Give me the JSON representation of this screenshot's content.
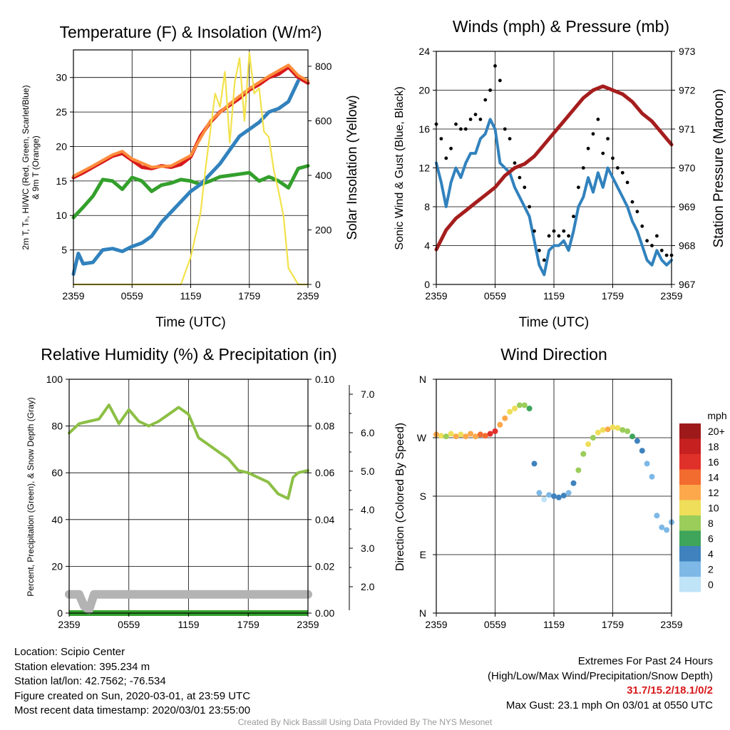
{
  "panels": [
    {
      "id": "temp",
      "title": "Temperature (F) & Insolation (W/m²)",
      "xlabel": "Time (UTC)",
      "ylabel_left_lines": [
        "2m T, Tₕ, HI/WC (Red, Green, Scarlet/Blue)",
        "& 9m T (Orange)"
      ],
      "ylabel_right": "Solar Insolation (Yellow)",
      "x_ticks": [
        "2359",
        "0559",
        "1159",
        "1759",
        "2359"
      ]
    },
    {
      "id": "wind",
      "title": "Winds (mph) & Pressure (mb)",
      "xlabel": "Time (UTC)",
      "ylabel_left": "Sonic Wind & Gust (Blue, Black)",
      "ylabel_right": "Station Pressure (Maroon)",
      "x_ticks": [
        "2359",
        "0559",
        "1159",
        "1759",
        "2359"
      ]
    },
    {
      "id": "rh",
      "title": "Relative Humidity (%) & Precipitation (in)",
      "ylabel_left": "Percent, Precipitation (Green), & Snow Depth (Gray)",
      "x_ticks": [
        "2359",
        "0559",
        "1159",
        "1759",
        "2359"
      ]
    },
    {
      "id": "dir",
      "title": "Wind Direction",
      "ylabel_left": "Direction (Colored By Speed)",
      "x_ticks": [
        "2359",
        "0559",
        "1159",
        "1759",
        "2359"
      ],
      "legend_title": "mph"
    }
  ],
  "chart_data": [
    {
      "type": "line",
      "title": "Temperature (F) & Insolation (W/m²)",
      "xlabel": "Time (UTC)",
      "x_hours_ticks": [
        "2359",
        "0559",
        "1159",
        "1759",
        "2359"
      ],
      "xlim": [
        0,
        24
      ],
      "y_left_lim": [
        0,
        34
      ],
      "y_left_ticks": [
        5,
        10,
        15,
        20,
        25,
        30
      ],
      "y_right_lim": [
        0,
        860
      ],
      "y_right_ticks": [
        0,
        200,
        400,
        600,
        800
      ],
      "grid": true,
      "series": [
        {
          "name": "2m T",
          "color": "#d7191c",
          "axis": "left",
          "x": [
            0,
            1,
            2,
            3,
            4,
            5,
            6,
            7,
            8,
            9,
            10,
            11,
            12,
            13,
            14,
            15,
            16,
            17,
            18,
            19,
            20,
            21,
            22,
            23,
            24
          ],
          "y": [
            15.5,
            16.2,
            17.0,
            17.8,
            18.6,
            19.0,
            18.0,
            17.0,
            16.8,
            17.2,
            17.0,
            17.4,
            18.5,
            21.5,
            23.5,
            25.0,
            26.0,
            27.0,
            28.2,
            29.0,
            30.0,
            30.5,
            31.5,
            30.0,
            29.2
          ]
        },
        {
          "name": "9m T",
          "color": "#fd8d3c",
          "axis": "left",
          "x": [
            0,
            2,
            4,
            5,
            6,
            8,
            10,
            12,
            14,
            16,
            18,
            20,
            22,
            23,
            24
          ],
          "y": [
            15.7,
            17.2,
            18.8,
            19.3,
            18.2,
            17.0,
            17.2,
            18.7,
            23.7,
            26.2,
            28.4,
            30.2,
            31.8,
            30.3,
            29.5
          ]
        },
        {
          "name": "Td",
          "color": "#33a02c",
          "axis": "left",
          "x": [
            0,
            1,
            2,
            3,
            4,
            5,
            6,
            7,
            8,
            9,
            10,
            11,
            12,
            13,
            14,
            15,
            16,
            17,
            18,
            19,
            20,
            21,
            22,
            23,
            24
          ],
          "y": [
            9.7,
            11.2,
            12.8,
            15.2,
            15.0,
            13.8,
            15.5,
            15.0,
            13.5,
            14.4,
            14.7,
            15.2,
            15.0,
            14.5,
            15.0,
            15.6,
            15.8,
            16.0,
            16.2,
            15.0,
            15.6,
            15.0,
            14.0,
            16.8,
            17.2
          ]
        },
        {
          "name": "HI/WC",
          "color": "#3182bd",
          "axis": "left",
          "x": [
            0,
            0.5,
            1,
            2,
            3,
            4,
            5,
            6,
            7,
            8,
            9,
            10,
            11,
            12,
            13,
            14,
            15,
            16,
            17,
            18,
            19,
            20,
            21,
            22,
            23
          ],
          "y": [
            1.5,
            4.5,
            3.0,
            3.2,
            5.0,
            5.2,
            4.8,
            5.5,
            6.0,
            7.0,
            9.0,
            10.5,
            12.0,
            13.5,
            14.5,
            16.0,
            17.5,
            19.5,
            21.5,
            22.5,
            23.5,
            25.0,
            25.5,
            26.5,
            29.5
          ]
        },
        {
          "name": "Solar",
          "color": "#f2e24b",
          "axis": "right",
          "x": [
            0,
            1,
            2,
            3,
            4,
            5,
            6,
            7,
            8,
            9,
            10,
            11,
            12,
            13,
            13.5,
            14,
            14.5,
            15,
            15.5,
            16,
            16.5,
            17,
            17.5,
            18,
            18.5,
            19,
            19.5,
            20,
            20.5,
            21,
            21.5,
            22,
            23,
            24
          ],
          "y": [
            0,
            0,
            0,
            0,
            0,
            0,
            0,
            0,
            0,
            0,
            0,
            0,
            100,
            260,
            420,
            560,
            700,
            650,
            780,
            520,
            740,
            830,
            600,
            850,
            700,
            720,
            560,
            540,
            420,
            340,
            250,
            60,
            0,
            0
          ]
        }
      ]
    },
    {
      "type": "line",
      "title": "Winds (mph) & Pressure (mb)",
      "xlabel": "Time (UTC)",
      "xlim": [
        0,
        24
      ],
      "y_left_lim": [
        0,
        24
      ],
      "y_left_ticks": [
        0,
        4,
        8,
        12,
        16,
        20,
        24
      ],
      "y_right_lim": [
        967,
        973
      ],
      "y_right_ticks": [
        967,
        968,
        969,
        970,
        971,
        972,
        973
      ],
      "grid": true,
      "series": [
        {
          "name": "Sonic Wind",
          "color": "#3182bd",
          "axis": "left",
          "x": [
            0,
            0.5,
            1,
            1.5,
            2,
            2.5,
            3,
            3.5,
            4,
            4.5,
            5,
            5.5,
            6,
            6.5,
            7,
            7.5,
            8,
            8.5,
            9,
            9.5,
            10,
            10.5,
            11,
            11.5,
            12,
            12.5,
            13,
            13.5,
            14,
            14.5,
            15,
            15.5,
            16,
            16.5,
            17,
            17.5,
            18,
            18.5,
            19,
            19.5,
            20,
            20.5,
            21,
            21.5,
            22,
            22.5,
            23,
            23.5,
            24
          ],
          "y": [
            12.5,
            10.5,
            8.0,
            10.5,
            12.0,
            11.0,
            12.5,
            13.5,
            13.5,
            15.0,
            15.5,
            17.0,
            16.0,
            12.5,
            12.0,
            11.5,
            10.0,
            9.0,
            8.0,
            7.0,
            4.5,
            2.0,
            1.0,
            3.5,
            4.0,
            4.0,
            4.5,
            3.5,
            5.5,
            8.0,
            9.0,
            11.0,
            9.5,
            11.5,
            10.0,
            12.0,
            11.0,
            10.0,
            9.0,
            8.0,
            6.5,
            5.5,
            4.0,
            2.5,
            2.0,
            3.5,
            2.5,
            2.0,
            2.5
          ]
        },
        {
          "name": "Gust",
          "color": "#000000",
          "axis": "left",
          "x": [
            0,
            0.5,
            1,
            1.5,
            2,
            2.5,
            3,
            3.5,
            4,
            4.5,
            5,
            5.5,
            6,
            6.5,
            7,
            7.5,
            8,
            8.5,
            9,
            9.5,
            10,
            10.5,
            11,
            11.5,
            12,
            12.5,
            13,
            13.5,
            14,
            14.5,
            15,
            15.5,
            16,
            16.5,
            17,
            17.5,
            18,
            18.5,
            19,
            19.5,
            20,
            20.5,
            21,
            21.5,
            22,
            22.5,
            23,
            23.5,
            24
          ],
          "y": [
            16.5,
            15.0,
            13.0,
            14.0,
            16.5,
            16.0,
            16.0,
            17.0,
            17.5,
            17.0,
            19.0,
            20.0,
            22.5,
            21.0,
            16.0,
            15.0,
            12.5,
            11.0,
            10.0,
            8.0,
            5.5,
            3.5,
            2.5,
            5.0,
            5.5,
            5.0,
            5.5,
            5.0,
            7.0,
            10.0,
            12.0,
            14.0,
            15.5,
            17.0,
            13.5,
            15.0,
            13.0,
            12.0,
            11.5,
            10.5,
            8.5,
            7.5,
            6.0,
            4.5,
            4.0,
            5.0,
            3.5,
            3.0,
            3.0
          ]
        },
        {
          "name": "Station Pressure",
          "color": "#a51d1d",
          "axis": "right",
          "x": [
            0,
            1,
            2,
            3,
            4,
            5,
            6,
            7,
            8,
            9,
            10,
            11,
            12,
            13,
            14,
            15,
            16,
            17,
            18,
            19,
            20,
            21,
            22,
            23,
            24
          ],
          "y": [
            967.9,
            968.4,
            968.7,
            968.9,
            969.1,
            969.3,
            969.5,
            969.8,
            970.0,
            970.1,
            970.3,
            970.6,
            970.9,
            971.2,
            971.5,
            971.8,
            972.0,
            972.1,
            972.0,
            971.9,
            971.7,
            971.4,
            971.2,
            970.9,
            970.6
          ]
        }
      ]
    },
    {
      "type": "line",
      "title": "Relative Humidity (%) & Precipitation (in)",
      "xlim": [
        0,
        24
      ],
      "y_left_lim": [
        0,
        100
      ],
      "y_left_ticks": [
        0,
        20,
        40,
        60,
        80,
        100
      ],
      "y_precip_lim": [
        0.0,
        0.1
      ],
      "y_precip_ticks": [
        0.0,
        0.02,
        0.04,
        0.06,
        0.08,
        0.1
      ],
      "y_snow_ticks": [
        2.0,
        3.0,
        4.0,
        5.0,
        6.0,
        7.0
      ],
      "grid": true,
      "series": [
        {
          "name": "RH",
          "color": "#8cbf45",
          "axis": "left",
          "x": [
            0,
            1,
            2,
            3,
            4,
            5,
            6,
            7,
            8,
            9,
            10,
            11,
            12,
            13,
            14,
            15,
            16,
            17,
            18,
            19,
            20,
            21,
            22,
            22.5,
            23,
            24
          ],
          "y": [
            77,
            81,
            82,
            83,
            89,
            81,
            87,
            82,
            80,
            82,
            85,
            88,
            85,
            75,
            72,
            69,
            66,
            61,
            60,
            58,
            56,
            51,
            49,
            58,
            60,
            61
          ]
        },
        {
          "name": "Precipitation",
          "color": "#33a02c",
          "axis": "left",
          "x": [
            0,
            24
          ],
          "y": [
            0,
            0
          ]
        },
        {
          "name": "Snow Depth",
          "color": "#b3b3b3",
          "axis": "snow",
          "x": [
            0,
            1,
            1.5,
            2,
            2.5,
            3,
            24
          ],
          "y": [
            1.8,
            1.8,
            1.5,
            1.4,
            1.8,
            1.8,
            1.8
          ]
        }
      ]
    },
    {
      "type": "scatter",
      "title": "Wind Direction",
      "xlim": [
        0,
        24
      ],
      "y_categories": [
        "N",
        "E",
        "S",
        "W",
        "N"
      ],
      "ylim_deg": [
        0,
        360
      ],
      "grid": true,
      "color_scale_mph": [
        {
          "label": "20+",
          "color": "#9e1a1a"
        },
        {
          "label": "18",
          "color": "#c62021"
        },
        {
          "label": "16",
          "color": "#e0302a"
        },
        {
          "label": "14",
          "color": "#f26b2f"
        },
        {
          "label": "12",
          "color": "#fca84b"
        },
        {
          "label": "10",
          "color": "#eede5a"
        },
        {
          "label": "8",
          "color": "#9acd5a"
        },
        {
          "label": "6",
          "color": "#3ea55b"
        },
        {
          "label": "4",
          "color": "#3f82bd"
        },
        {
          "label": "2",
          "color": "#7db8e6"
        },
        {
          "label": "0",
          "color": "#bfe3f7"
        }
      ],
      "points": {
        "x": [
          0,
          0.5,
          1,
          1.5,
          2,
          2.5,
          3,
          3.5,
          4,
          4.5,
          5,
          5.5,
          6,
          6.5,
          7,
          7.5,
          8,
          8.5,
          9,
          9.5,
          10,
          10.5,
          11,
          11.5,
          12,
          12.5,
          13,
          13.5,
          14,
          14.5,
          15,
          15.5,
          16,
          16.5,
          17,
          17.5,
          18,
          18.5,
          19,
          19.5,
          20,
          20.5,
          21,
          21.5,
          22,
          22.5,
          23,
          23.5,
          24
        ],
        "dir_deg": [
          275,
          273,
          272,
          276,
          272,
          275,
          272,
          276,
          272,
          275,
          273,
          276,
          280,
          290,
          300,
          310,
          315,
          320,
          320,
          315,
          230,
          185,
          175,
          182,
          180,
          178,
          181,
          185,
          200,
          220,
          245,
          260,
          270,
          278,
          282,
          283,
          286,
          285,
          282,
          280,
          272,
          265,
          250,
          230,
          210,
          150,
          132,
          128,
          140
        ],
        "speed": [
          12,
          10,
          8,
          10,
          12,
          11,
          12,
          13,
          13,
          15,
          15,
          17,
          16,
          12,
          12,
          11,
          10,
          9,
          8,
          7,
          4.5,
          2,
          1,
          3.5,
          4,
          4,
          4.5,
          3.5,
          5.5,
          8,
          9,
          11,
          9.5,
          11.5,
          10,
          12,
          11,
          10,
          9,
          8,
          6.5,
          5.5,
          4,
          2.5,
          2,
          3.5,
          2.5,
          2,
          2.5
        ]
      }
    }
  ],
  "footer_left": [
    "Location: Scipio Center",
    "Station elevation: 395.234 m",
    "Station lat/lon: 42.7562; -76.534",
    "Figure created on Sun, 2020-03-01, at 23:59 UTC",
    "Most recent data timestamp: 2020/03/01 23:55:00"
  ],
  "extremes_title": "Extremes For Past 24 Hours",
  "extremes_subtitle": "(High/Low/Max Wind/Precipitation/Snow Depth)",
  "extremes_values": "31.7/15.2/18.1/0/2",
  "max_gust": "Max Gust: 23.1 mph On 03/01 at 0550 UTC",
  "credit": "Created By Nick Bassill Using Data Provided By The NYS Mesonet"
}
